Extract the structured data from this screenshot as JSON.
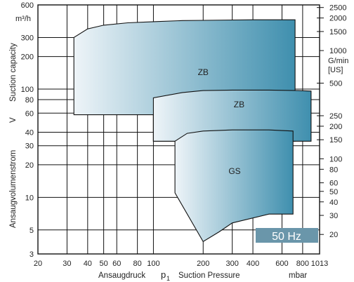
{
  "chart_data": {
    "type": "area",
    "title": "",
    "x_label_de": "Ansaugdruck",
    "x_symbol": "p",
    "x_symbol_sub": "1",
    "x_label_en": "Suction Pressure",
    "x_unit": "mbar",
    "y_label_de": "Ansaugvolumenstrom",
    "y_symbol": "V",
    "y_label_en": "Suction capacity",
    "y_unit": "m³/h",
    "y2_unit_line1": "G/min",
    "y2_unit_line2": "[US]",
    "x_scale": "log",
    "y_scale": "log",
    "xlim": [
      20,
      1013
    ],
    "ylim": [
      3,
      600
    ],
    "x_ticks": [
      "20",
      "30",
      "40",
      "50",
      "60",
      "80",
      "100",
      "200",
      "300",
      "400",
      "600",
      "800",
      "1013"
    ],
    "x_tick_values": [
      20,
      30,
      40,
      50,
      60,
      80,
      100,
      200,
      300,
      400,
      600,
      800,
      1013
    ],
    "y_ticks": [
      "600",
      "300",
      "200",
      "100",
      "80",
      "60",
      "40",
      "30",
      "20",
      "10",
      "5",
      "3"
    ],
    "y_tick_values": [
      600,
      300,
      200,
      100,
      80,
      60,
      40,
      30,
      20,
      10,
      5,
      3
    ],
    "y2_ticks": [
      {
        "label": "2500",
        "value": 2500
      },
      {
        "label": "2000",
        "value": 2000
      },
      {
        "label": "1500",
        "value": 1500
      },
      {
        "label": "1000",
        "value": 1000
      },
      {
        "label": "500",
        "value": 500
      },
      {
        "label": "250",
        "value": 250
      },
      {
        "label": "200",
        "value": 200
      },
      {
        "label": "150",
        "value": 150
      },
      {
        "label": "100",
        "value": 100
      },
      {
        "label": "80",
        "value": 80
      },
      {
        "label": "60",
        "value": 60
      },
      {
        "label": "50",
        "value": 50
      },
      {
        "label": "40",
        "value": 40
      },
      {
        "label": "30",
        "value": 30
      },
      {
        "label": "20",
        "value": 20
      }
    ],
    "y2_per_y1": 4.403,
    "grid": true,
    "series": [
      {
        "name": "ZB",
        "points": [
          [
            33,
            58
          ],
          [
            33,
            300
          ],
          [
            40,
            360
          ],
          [
            50,
            390
          ],
          [
            70,
            410
          ],
          [
            100,
            420
          ],
          [
            150,
            430
          ],
          [
            200,
            432
          ],
          [
            300,
            435
          ],
          [
            400,
            437
          ],
          [
            600,
            437
          ],
          [
            720,
            437
          ],
          [
            720,
            33
          ],
          [
            100,
            33
          ],
          [
            100,
            58
          ],
          [
            33,
            58
          ]
        ]
      },
      {
        "name": "ZB",
        "points": [
          [
            100,
            33
          ],
          [
            100,
            83
          ],
          [
            150,
            93
          ],
          [
            200,
            97
          ],
          [
            300,
            98
          ],
          [
            500,
            98
          ],
          [
            750,
            97
          ],
          [
            900,
            96
          ],
          [
            900,
            33
          ],
          [
            100,
            33
          ]
        ]
      },
      {
        "name": "GS",
        "points": [
          [
            135,
            33
          ],
          [
            160,
            39
          ],
          [
            200,
            41
          ],
          [
            300,
            42
          ],
          [
            500,
            42
          ],
          [
            700,
            41
          ],
          [
            700,
            7
          ],
          [
            500,
            7
          ],
          [
            300,
            5.8
          ],
          [
            250,
            4.8
          ],
          [
            200,
            3.9
          ],
          [
            135,
            11
          ],
          [
            135,
            33
          ]
        ]
      }
    ],
    "region_labels": [
      {
        "text": "ZB",
        "x": 200,
        "y": 135
      },
      {
        "text": "ZB",
        "x": 330,
        "y": 68
      },
      {
        "text": "GS",
        "x": 310,
        "y": 16.5
      }
    ],
    "badge": "50 Hz",
    "colors": {
      "fill_light": "#eef4f8",
      "fill_dark": "#3f8fae",
      "badge_bg": "#6a96aa",
      "line": "#111111",
      "text": "#222222"
    }
  }
}
